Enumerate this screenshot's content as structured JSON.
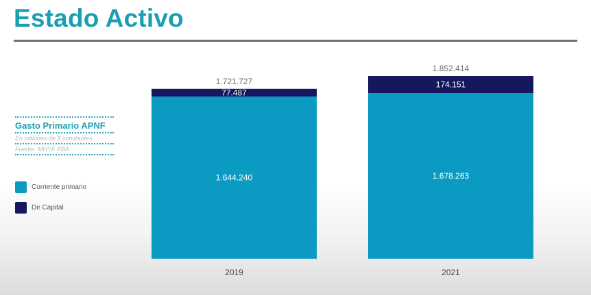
{
  "title": "Estado Activo",
  "sidebar": {
    "heading": "Gasto Primario APNF",
    "units": "En millones de $ constantes",
    "source": "Fuente: MHYF PBA"
  },
  "colors": {
    "title": "#1a9fb2",
    "corriente": "#0a9ac2",
    "capital": "#17175e",
    "rule": "#6f6f6f"
  },
  "chart_data": {
    "type": "bar",
    "stacked": true,
    "categories": [
      "2019",
      "2021"
    ],
    "series": [
      {
        "name": "Corriente primario",
        "values": [
          1644240,
          1678263
        ],
        "labels": [
          "1.644.240",
          "1.678.263"
        ]
      },
      {
        "name": "De Capital",
        "values": [
          77487,
          174151
        ],
        "labels": [
          "77.487",
          "174.151"
        ]
      }
    ],
    "totals": [
      1721727,
      1852414
    ],
    "total_labels": [
      "1.721.727",
      "1.852.414"
    ],
    "legend_position": "left",
    "grid": false
  }
}
